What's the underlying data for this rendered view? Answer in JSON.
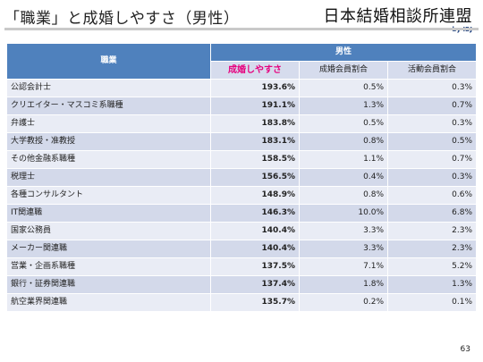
{
  "header": {
    "title": "「職業」と成婚しやすさ（男性）",
    "logo_text": "日本結婚相談所連盟",
    "logo_sub": "by IBJ"
  },
  "table": {
    "occupation_header": "職業",
    "group_header": "男性",
    "columns": [
      "成婚しやすさ",
      "成婚会員割合",
      "活動会員割合"
    ],
    "rows": [
      {
        "occupation": "公認会計士",
        "ease": "193.6%",
        "married_ratio": "0.5%",
        "active_ratio": "0.3%"
      },
      {
        "occupation": "クリエイター・マスコミ系職種",
        "ease": "191.1%",
        "married_ratio": "1.3%",
        "active_ratio": "0.7%"
      },
      {
        "occupation": "弁護士",
        "ease": "183.8%",
        "married_ratio": "0.5%",
        "active_ratio": "0.3%"
      },
      {
        "occupation": "大学教授・准教授",
        "ease": "183.1%",
        "married_ratio": "0.8%",
        "active_ratio": "0.5%"
      },
      {
        "occupation": "その他金融系職種",
        "ease": "158.5%",
        "married_ratio": "1.1%",
        "active_ratio": "0.7%"
      },
      {
        "occupation": "税理士",
        "ease": "156.5%",
        "married_ratio": "0.4%",
        "active_ratio": "0.3%"
      },
      {
        "occupation": "各種コンサルタント",
        "ease": "148.9%",
        "married_ratio": "0.8%",
        "active_ratio": "0.6%"
      },
      {
        "occupation": "IT関連職",
        "ease": "146.3%",
        "married_ratio": "10.0%",
        "active_ratio": "6.8%"
      },
      {
        "occupation": "国家公務員",
        "ease": "140.4%",
        "married_ratio": "3.3%",
        "active_ratio": "2.3%"
      },
      {
        "occupation": "メーカー関連職",
        "ease": "140.4%",
        "married_ratio": "3.3%",
        "active_ratio": "2.3%"
      },
      {
        "occupation": "営業・企画系職種",
        "ease": "137.5%",
        "married_ratio": "7.1%",
        "active_ratio": "5.2%"
      },
      {
        "occupation": "銀行・証券関連職",
        "ease": "137.4%",
        "married_ratio": "1.8%",
        "active_ratio": "1.3%"
      },
      {
        "occupation": "航空業界関連職",
        "ease": "135.7%",
        "married_ratio": "0.2%",
        "active_ratio": "0.1%"
      }
    ]
  },
  "footer": {
    "page_number": "63"
  },
  "colors": {
    "header_blue": "#4f81bd",
    "accent_pink": "#e6007e",
    "row_light": "#e9ecf5",
    "row_dark": "#d3d9ea"
  }
}
